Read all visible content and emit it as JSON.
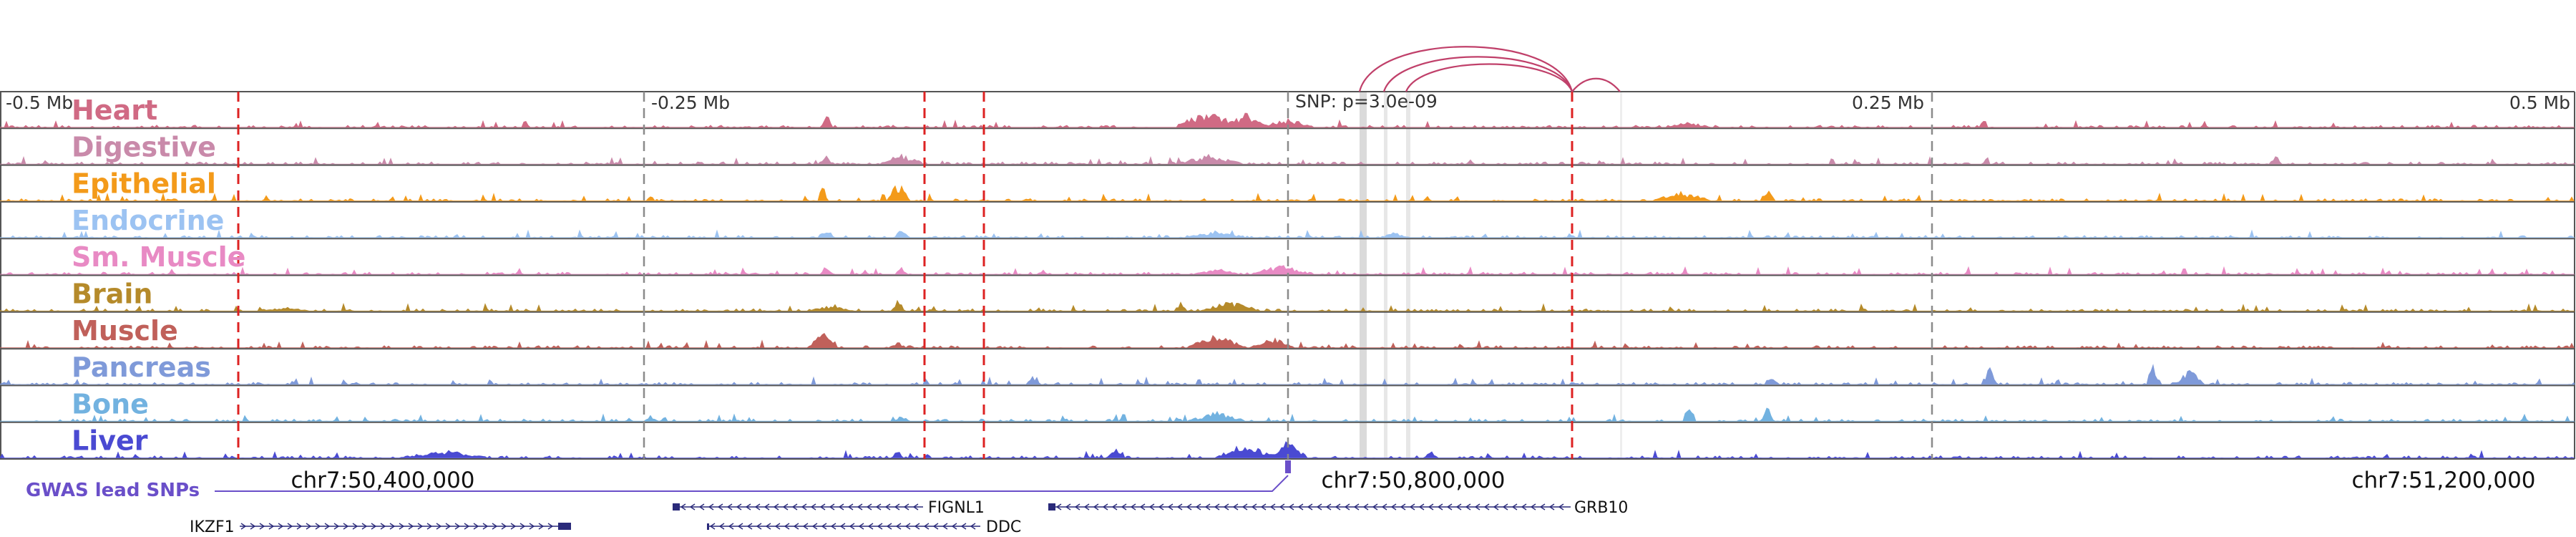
{
  "title": "",
  "axis": {
    "ticks": [
      "-0.5 Mb",
      "-0.25 Mb",
      "0.25 Mb",
      "0.5 Mb"
    ],
    "snp_label": "SNP: p=3.0e-09"
  },
  "tracks": [
    {
      "name": "Heart",
      "color": "#d06a84"
    },
    {
      "name": "Digestive",
      "color": "#c98aaa"
    },
    {
      "name": "Epithelial",
      "color": "#f39a1a"
    },
    {
      "name": "Endocrine",
      "color": "#9cc3f2"
    },
    {
      "name": "Sm. Muscle",
      "color": "#e88ac4"
    },
    {
      "name": "Brain",
      "color": "#b58a2a"
    },
    {
      "name": "Muscle",
      "color": "#c0605a"
    },
    {
      "name": "Pancreas",
      "color": "#7f9ad9"
    },
    {
      "name": "Bone",
      "color": "#72b2e0"
    },
    {
      "name": "Liver",
      "color": "#4a4ad2"
    }
  ],
  "gwas_label": "GWAS lead SNPs",
  "coordinates": [
    "chr7:50,400,000",
    "chr7:50,800,000",
    "chr7:51,200,000"
  ],
  "genes": [
    {
      "name": "FIGNL1",
      "strand": "-"
    },
    {
      "name": "GRB10",
      "strand": "-"
    },
    {
      "name": "IKZF1",
      "strand": "+"
    },
    {
      "name": "DDC",
      "strand": "-"
    }
  ],
  "colors": {
    "track_line": "#555555",
    "boundary_dash": "#dd2222",
    "tick_dash": "#8a8a8a",
    "arc": "#c0406a",
    "highlight": "#bbbbbb",
    "gene": "#2a2a7a",
    "gwas": "#6a4fc9"
  }
}
